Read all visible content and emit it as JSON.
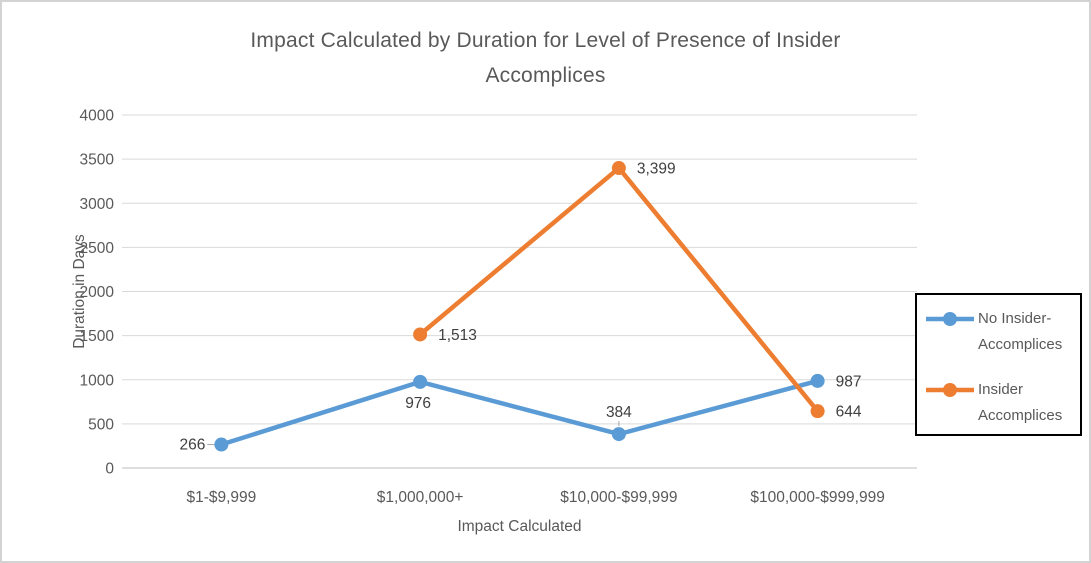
{
  "title": {
    "full": "Impact Calculated by Duration for Level of Presence of Insider Accomplices",
    "line1": "Impact Calculated by Duration for Level of Presence of Insider",
    "line2": "Accomplices"
  },
  "colors": {
    "series_blue": "#5B9BD5",
    "series_orange": "#ED7D31",
    "gridline": "#D9D9D9",
    "axis_line": "#BFBFBF",
    "leader_line": "#A6A6A6",
    "axis_text": "#595959",
    "title_text": "#595959",
    "data_label_text": "#404040",
    "legend_border": "#000000",
    "frame_border": "#D3D3D3"
  },
  "chart_data": {
    "type": "line",
    "title": "Impact Calculated by Duration for Level of Presence of Insider Accomplices",
    "xlabel": "Impact Calculated",
    "ylabel": "Duration in Days",
    "categories": [
      "$1-$9,999",
      "$1,000,000+",
      "$10,000-$99,999",
      "$100,000-$999,999"
    ],
    "series": [
      {
        "name": "No Insider-Accomplices",
        "color": "#5B9BD5",
        "values": [
          266,
          976,
          384,
          987
        ],
        "data_labels": [
          "266",
          "976",
          "384",
          "987"
        ],
        "label_placements": [
          "left-leader",
          "below",
          "above-leader",
          "right"
        ]
      },
      {
        "name": "Insider Accomplices",
        "color": "#ED7D31",
        "values": [
          null,
          1513,
          3399,
          644
        ],
        "data_labels": [
          null,
          "1,513",
          "3,399",
          "644"
        ],
        "label_placements": [
          null,
          "right",
          "right",
          "right"
        ]
      }
    ],
    "ylim": [
      0,
      4000
    ],
    "ytick_labels": [
      "0",
      "500",
      "1000",
      "1500",
      "2000",
      "2500",
      "3000",
      "3500",
      "4000"
    ],
    "grid": true,
    "legend_position": "right",
    "marker": "circle"
  },
  "legend": {
    "entries": [
      {
        "name": "No Insider-Accomplices",
        "lines": [
          "No Insider-",
          "Accomplices"
        ],
        "color": "#5B9BD5"
      },
      {
        "name": "Insider Accomplices",
        "lines": [
          "Insider",
          "Accomplices"
        ],
        "color": "#ED7D31"
      }
    ]
  }
}
